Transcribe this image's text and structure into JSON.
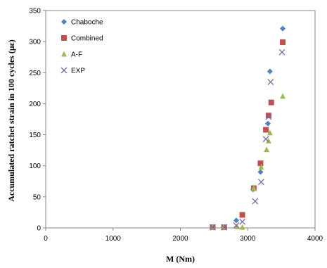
{
  "chart_data": {
    "type": "scatter",
    "title": "",
    "xlabel": "M (Nm)",
    "ylabel": "Accumulated ratchet strain in 100 cycles (με)",
    "xlim": [
      0,
      4000
    ],
    "ylim": [
      0,
      350
    ],
    "xticks": [
      0,
      1000,
      2000,
      3000,
      4000
    ],
    "yticks": [
      0,
      50,
      100,
      150,
      200,
      250,
      300,
      350
    ],
    "grid": false,
    "legend_position": "top-left",
    "series": [
      {
        "name": "Chaboche",
        "marker": "diamond",
        "color": "#4f81bd",
        "points": [
          [
            2480,
            1
          ],
          [
            2640,
            1
          ],
          [
            2830,
            12
          ],
          [
            3080,
            62
          ],
          [
            3190,
            90
          ],
          [
            3300,
            168
          ],
          [
            3330,
            252
          ],
          [
            3520,
            321
          ]
        ]
      },
      {
        "name": "Combined",
        "marker": "square",
        "color": "#c0504d",
        "points": [
          [
            2480,
            1
          ],
          [
            2650,
            1
          ],
          [
            2920,
            21
          ],
          [
            3090,
            64
          ],
          [
            3190,
            104
          ],
          [
            3270,
            158
          ],
          [
            3310,
            181
          ],
          [
            3350,
            202
          ],
          [
            3520,
            299
          ]
        ]
      },
      {
        "name": "A-F",
        "marker": "triangle",
        "color": "#9bbb59",
        "points": [
          [
            2480,
            1
          ],
          [
            2640,
            1
          ],
          [
            2840,
            2
          ],
          [
            2920,
            1
          ],
          [
            3090,
            64
          ],
          [
            3200,
            98
          ],
          [
            3280,
            126
          ],
          [
            3310,
            140
          ],
          [
            3330,
            153
          ],
          [
            3520,
            212
          ]
        ]
      },
      {
        "name": "EXP",
        "marker": "x",
        "color": "#8064a2",
        "points": [
          [
            2480,
            1
          ],
          [
            2650,
            1
          ],
          [
            2830,
            4
          ],
          [
            2920,
            10
          ],
          [
            3110,
            43
          ],
          [
            3200,
            74
          ],
          [
            3270,
            143
          ],
          [
            3310,
            179
          ],
          [
            3340,
            235
          ],
          [
            3510,
            283
          ]
        ]
      }
    ]
  }
}
